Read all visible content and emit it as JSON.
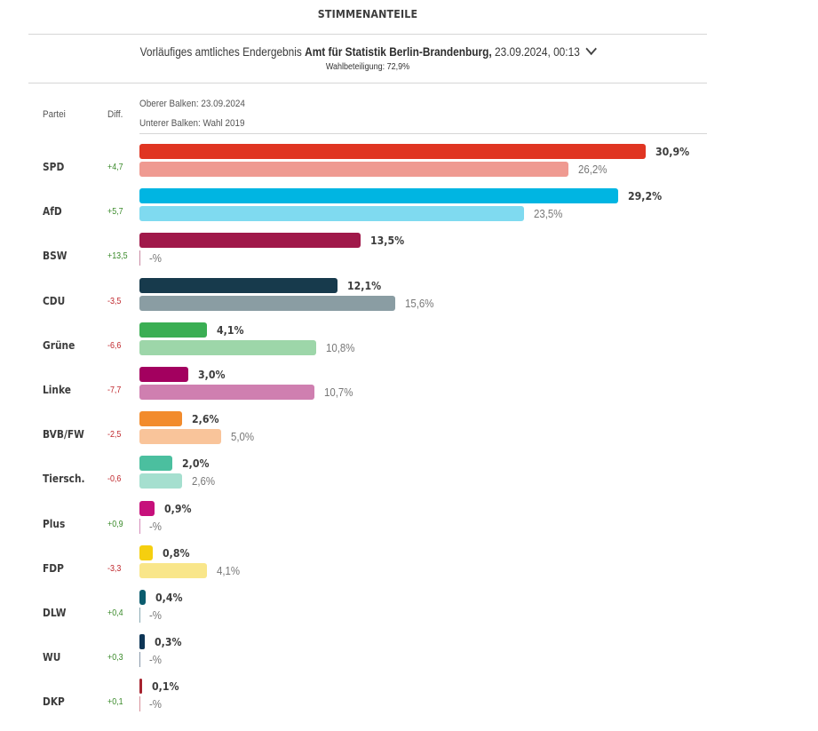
{
  "header": {
    "title": "STIMMENANTEILE",
    "source_prefix": "Vorläufiges amtliches Endergebnis ",
    "source_bold": "Amt für Statistik Berlin-Brandenburg,",
    "source_suffix": " 23.09.2024, 00:13",
    "turnout": "Wahlbeteiligung: 72,9%"
  },
  "columns": {
    "party": "Partei",
    "diff": "Diff.",
    "legend_top": "Oberer Balken: 23.09.2024",
    "legend_bottom": "Unterer Balken: Wahl 2019"
  },
  "chart_data": {
    "type": "bar",
    "title": "STIMMENANTEILE",
    "orientation": "horizontal",
    "categories": [
      "SPD",
      "AfD",
      "BSW",
      "CDU",
      "Grüne",
      "Linke",
      "BVB/FW",
      "Tiersch.",
      "Plus",
      "FDP",
      "DLW",
      "WU",
      "DKP"
    ],
    "series": [
      {
        "name": "Oberer Balken: 23.09.2024",
        "values": [
          30.9,
          29.2,
          13.5,
          12.1,
          4.1,
          3.0,
          2.6,
          2.0,
          0.9,
          0.8,
          0.4,
          0.3,
          0.1
        ],
        "labels": [
          "30,9%",
          "29,2%",
          "13,5%",
          "12,1%",
          "4,1%",
          "3,0%",
          "2,6%",
          "2,0%",
          "0,9%",
          "0,8%",
          "0,4%",
          "0,3%",
          "0,1%"
        ],
        "colors": [
          "#e03522",
          "#00b5e2",
          "#a0194a",
          "#173a4c",
          "#3aae53",
          "#a3005f",
          "#f28b2c",
          "#4bbf9f",
          "#c6107b",
          "#f5cf0f",
          "#0a5c6e",
          "#0d3556",
          "#a6232f"
        ]
      },
      {
        "name": "Unterer Balken: Wahl 2019",
        "values": [
          26.2,
          23.5,
          null,
          15.6,
          10.8,
          10.7,
          5.0,
          2.6,
          null,
          4.1,
          null,
          null,
          null
        ],
        "labels": [
          "26,2%",
          "23,5%",
          "-%",
          "15,6%",
          "10,8%",
          "10,7%",
          "5,0%",
          "2,6%",
          "-%",
          "4,1%",
          "-%",
          "-%",
          "-%"
        ],
        "colors": [
          "#ef9a91",
          "#7fdaf0",
          "#c98aa3",
          "#8a9da3",
          "#9dd6a9",
          "#cf7fb0",
          "#f9c49a",
          "#a5dfcf",
          "#d48cb9",
          "#f9e68a",
          "#8aaab3",
          "#8898aa",
          "#d7909a"
        ]
      }
    ],
    "diff": [
      "+4,7",
      "+5,7",
      "+13,5",
      "-3,5",
      "-6,6",
      "-7,7",
      "-2,5",
      "-0,6",
      "+0,9",
      "-3,3",
      "+0,4",
      "+0,3",
      "+0,1"
    ],
    "xlim": [
      0,
      30.9
    ],
    "grid": false,
    "legend": "top-left"
  }
}
